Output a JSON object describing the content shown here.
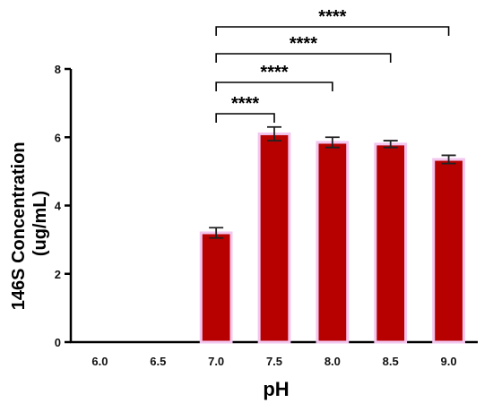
{
  "chart_data": {
    "type": "bar",
    "categories": [
      "6.0",
      "6.5",
      "7.0",
      "7.5",
      "8.0",
      "8.5",
      "9.0"
    ],
    "series": [
      {
        "values": [
          0,
          0,
          3.2,
          6.1,
          5.85,
          5.8,
          5.35
        ],
        "errors": [
          0,
          0,
          0.15,
          0.2,
          0.15,
          0.1,
          0.12
        ]
      }
    ],
    "xlabel": "pH",
    "ylabel_line1": "146S Concentration",
    "ylabel_line2": "(ug/mL)",
    "ylim": [
      0,
      8
    ],
    "yticks": [
      0,
      2,
      4,
      6,
      8
    ],
    "grid": false,
    "bar_color": "#b70000",
    "bar_edge_color": "#f2c6ee",
    "comparisons": [
      {
        "from": "7.0",
        "to": "7.5",
        "label": "****"
      },
      {
        "from": "7.0",
        "to": "8.0",
        "label": "****"
      },
      {
        "from": "7.0",
        "to": "8.5",
        "label": "****"
      },
      {
        "from": "7.0",
        "to": "9.0",
        "label": "****"
      }
    ]
  }
}
